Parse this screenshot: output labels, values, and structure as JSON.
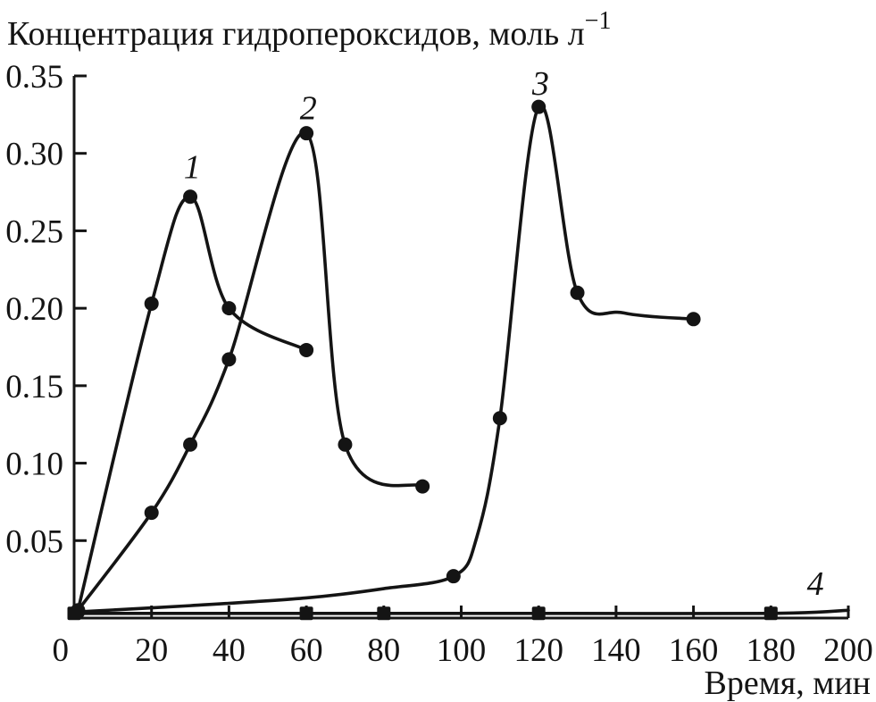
{
  "figure": {
    "background_color": "#ffffff",
    "ink_color": "#141414"
  },
  "chart_data": {
    "type": "line",
    "title": "Концентрация гидропероксидов, моль л",
    "title_superscript": "−1",
    "xlabel": "Время, мин",
    "ylabel": "Концентрация гидропероксидов, моль л⁻¹",
    "xlim": [
      0,
      200
    ],
    "ylim": [
      0,
      0.35
    ],
    "grid": false,
    "legend_position": "none",
    "xticks": [
      {
        "value": 0,
        "label": "0"
      },
      {
        "value": 20,
        "label": "20"
      },
      {
        "value": 40,
        "label": "40"
      },
      {
        "value": 60,
        "label": "60"
      },
      {
        "value": 80,
        "label": "80"
      },
      {
        "value": 100,
        "label": "100"
      },
      {
        "value": 120,
        "label": "120"
      },
      {
        "value": 140,
        "label": "140"
      },
      {
        "value": 160,
        "label": "160"
      },
      {
        "value": 180,
        "label": "180"
      },
      {
        "value": 200,
        "label": "200"
      }
    ],
    "yticks": [
      {
        "value": 0.05,
        "label": "0.05"
      },
      {
        "value": 0.1,
        "label": "0.10"
      },
      {
        "value": 0.15,
        "label": "0.15"
      },
      {
        "value": 0.2,
        "label": "0.20"
      },
      {
        "value": 0.25,
        "label": "0.25"
      },
      {
        "value": 0.3,
        "label": "0.30"
      },
      {
        "value": 0.35,
        "label": "0.35"
      }
    ],
    "series": [
      {
        "name": "1",
        "marker": "circle",
        "label_pos": [
          30.5,
          0.284
        ],
        "markers": [
          [
            1,
            0.005
          ],
          [
            20,
            0.203
          ],
          [
            30,
            0.272
          ],
          [
            40,
            0.2
          ],
          [
            60,
            0.173
          ]
        ],
        "line": [
          [
            1,
            0.005
          ],
          [
            20,
            0.203
          ],
          [
            30,
            0.272
          ],
          [
            40,
            0.2
          ],
          [
            60,
            0.173
          ]
        ]
      },
      {
        "name": "2",
        "marker": "circle",
        "label_pos": [
          60.5,
          0.322
        ],
        "markers": [
          [
            1,
            0.005
          ],
          [
            20,
            0.068
          ],
          [
            30,
            0.112
          ],
          [
            40,
            0.167
          ],
          [
            60,
            0.313
          ],
          [
            70,
            0.112
          ],
          [
            90,
            0.085
          ]
        ],
        "line": [
          [
            1,
            0.005
          ],
          [
            20,
            0.068
          ],
          [
            30,
            0.112
          ],
          [
            40,
            0.167
          ],
          [
            60,
            0.313
          ],
          [
            70,
            0.112
          ],
          [
            90,
            0.085
          ]
        ]
      },
      {
        "name": "3",
        "marker": "circle",
        "label_pos": [
          120.5,
          0.338
        ],
        "markers": [
          [
            1,
            0.004
          ],
          [
            98,
            0.027
          ],
          [
            110,
            0.129
          ],
          [
            120,
            0.33
          ],
          [
            130,
            0.21
          ],
          [
            160,
            0.193
          ]
        ],
        "line": [
          [
            1,
            0.004
          ],
          [
            30,
            0.008
          ],
          [
            60,
            0.013
          ],
          [
            80,
            0.019
          ],
          [
            98,
            0.027
          ],
          [
            104,
            0.052
          ],
          [
            110,
            0.129
          ],
          [
            120,
            0.33
          ],
          [
            130,
            0.21
          ],
          [
            142,
            0.197
          ],
          [
            160,
            0.193
          ]
        ]
      },
      {
        "name": "4",
        "marker": "square",
        "label_pos": [
          191.5,
          0.015
        ],
        "markers": [
          [
            0,
            0.003
          ],
          [
            60,
            0.003
          ],
          [
            80,
            0.003
          ],
          [
            120,
            0.003
          ],
          [
            180,
            0.003
          ]
        ],
        "line": [
          [
            0,
            0.003
          ],
          [
            60,
            0.003
          ],
          [
            80,
            0.003
          ],
          [
            120,
            0.003
          ],
          [
            180,
            0.003
          ],
          [
            200,
            0.005
          ]
        ]
      }
    ]
  }
}
